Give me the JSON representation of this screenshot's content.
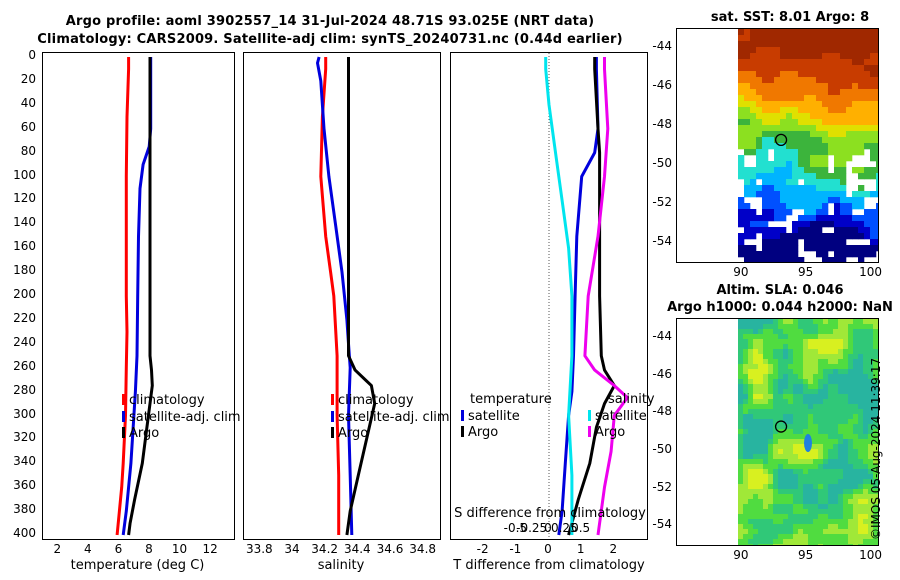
{
  "header": {
    "line1": "Argo profile: aoml 3902557_14 31-Jul-2024 48.71S 93.025E (NRT data)",
    "line2": "Climatology: CARS2009. Satellite-adj clim: synTS_20240731.nc (0.44d earlier)"
  },
  "colors": {
    "climatology": "#ff0000",
    "satellite": "#0000dd",
    "argo": "#000000",
    "sal_sat": "#00e5ee",
    "sal_argo": "#ee00ee"
  },
  "chart_data": [
    {
      "type": "line",
      "id": "temperature",
      "xlabel": "temperature (deg C)",
      "xlim": [
        1,
        13.5
      ],
      "ylim": [
        0,
        400
      ],
      "y_reversed": true,
      "xticks": [
        "2",
        "4",
        "6",
        "8",
        "10",
        "12"
      ],
      "yticks": [
        "0",
        "20",
        "40",
        "60",
        "80",
        "100",
        "120",
        "140",
        "160",
        "180",
        "200",
        "220",
        "240",
        "260",
        "280",
        "300",
        "320",
        "340",
        "360",
        "380",
        "400"
      ],
      "legend": [
        "climatology",
        "satellite-adj. clim",
        "Argo"
      ],
      "series": [
        {
          "name": "climatology",
          "depth": [
            0,
            10,
            50,
            100,
            150,
            200,
            230,
            260,
            300,
            340,
            360,
            380,
            400
          ],
          "values": [
            6.6,
            6.6,
            6.5,
            6.45,
            6.45,
            6.45,
            6.5,
            6.45,
            6.4,
            6.25,
            6.15,
            6.0,
            5.85
          ]
        },
        {
          "name": "satellite-adj. clim",
          "depth": [
            0,
            10,
            60,
            75,
            90,
            110,
            150,
            200,
            250,
            280,
            300,
            340,
            380,
            400
          ],
          "values": [
            8.05,
            8.05,
            8.05,
            7.95,
            7.55,
            7.35,
            7.25,
            7.2,
            7.15,
            7.05,
            6.95,
            6.75,
            6.45,
            6.25
          ]
        },
        {
          "name": "Argo",
          "depth": [
            0,
            10,
            60,
            80,
            100,
            150,
            200,
            250,
            262,
            275,
            290,
            310,
            340,
            370,
            390,
            400
          ],
          "values": [
            8.0,
            8.0,
            8.0,
            8.0,
            8.0,
            8.0,
            8.0,
            8.0,
            8.1,
            8.15,
            8.0,
            7.8,
            7.5,
            7.0,
            6.7,
            6.6
          ]
        }
      ]
    },
    {
      "type": "line",
      "id": "salinity",
      "xlabel": "salinity",
      "xlim": [
        33.7,
        34.9
      ],
      "ylim": [
        0,
        400
      ],
      "y_reversed": true,
      "xticks": [
        "33.8",
        "34",
        "34.2",
        "34.4",
        "34.6",
        "34.8"
      ],
      "legend": [
        "climatology",
        "satellite-adj. clim",
        "Argo"
      ],
      "series": [
        {
          "name": "climatology",
          "depth": [
            0,
            10,
            50,
            100,
            150,
            180,
            200,
            250,
            300,
            350,
            400
          ],
          "values": [
            34.2,
            34.2,
            34.18,
            34.17,
            34.2,
            34.23,
            34.25,
            34.27,
            34.27,
            34.28,
            34.28
          ]
        },
        {
          "name": "satellite-adj. clim",
          "depth": [
            0,
            5,
            20,
            60,
            100,
            140,
            180,
            220,
            240,
            260,
            300,
            350,
            400
          ],
          "values": [
            34.16,
            34.15,
            34.17,
            34.19,
            34.22,
            34.26,
            34.3,
            34.33,
            34.34,
            34.35,
            34.34,
            34.35,
            34.36
          ]
        },
        {
          "name": "Argo",
          "depth": [
            0,
            10,
            60,
            100,
            150,
            200,
            250,
            262,
            275,
            290,
            320,
            350,
            380,
            400
          ],
          "values": [
            34.34,
            34.34,
            34.34,
            34.34,
            34.34,
            34.34,
            34.34,
            34.38,
            34.48,
            34.5,
            34.45,
            34.4,
            34.35,
            34.33
          ]
        }
      ]
    },
    {
      "type": "line",
      "id": "difference",
      "xlabel": "T difference from climatology",
      "top_label": "S difference from climatology",
      "xlim": [
        -3,
        3
      ],
      "ylim": [
        0,
        400
      ],
      "y_reversed": true,
      "xticks": [
        "-2",
        "-1",
        "0",
        "1",
        "2"
      ],
      "top_ticks": [
        "-0.5",
        "-0.25",
        "0",
        "0.25",
        "0.5"
      ],
      "legend_titles": [
        "temperature",
        "salinity"
      ],
      "legend_left": [
        "satellite",
        "Argo"
      ],
      "legend_right": [
        "satellite",
        "Argo"
      ],
      "series": [
        {
          "name": "T satellite",
          "depth": [
            0,
            10,
            60,
            80,
            100,
            150,
            200,
            250,
            280,
            300,
            340,
            380,
            400
          ],
          "values": [
            1.45,
            1.45,
            1.5,
            1.4,
            1.0,
            0.85,
            0.8,
            0.75,
            0.7,
            0.6,
            0.5,
            0.4,
            0.3
          ]
        },
        {
          "name": "T Argo",
          "depth": [
            0,
            10,
            60,
            80,
            100,
            150,
            200,
            250,
            262,
            275,
            290,
            310,
            340,
            370,
            400
          ],
          "values": [
            1.4,
            1.4,
            1.5,
            1.55,
            1.55,
            1.55,
            1.55,
            1.6,
            1.7,
            2.0,
            1.7,
            1.45,
            1.25,
            0.9,
            0.6
          ]
        },
        {
          "name": "S satellite",
          "depth": [
            0,
            10,
            40,
            80,
            120,
            160,
            200,
            250,
            300,
            350,
            400
          ],
          "values": [
            -0.05,
            -0.05,
            0.0,
            0.1,
            0.2,
            0.3,
            0.35,
            0.35,
            0.3,
            0.35,
            0.35
          ]
        },
        {
          "name": "S Argo",
          "depth": [
            0,
            10,
            60,
            100,
            150,
            200,
            250,
            262,
            275,
            285,
            300,
            330,
            360,
            400
          ],
          "values": [
            0.85,
            0.85,
            0.9,
            0.85,
            0.75,
            0.6,
            0.55,
            0.7,
            1.0,
            1.2,
            1.0,
            0.95,
            0.85,
            0.75
          ]
        }
      ]
    },
    {
      "type": "heatmap",
      "id": "sst-map",
      "title": "sat. SST: 8.01 Argo: 8",
      "xlim": [
        85,
        100.5
      ],
      "ylim": [
        -55,
        -43
      ],
      "xticks": [
        "90",
        "95",
        "100"
      ],
      "yticks": [
        "-44",
        "-46",
        "-48",
        "-50",
        "-52",
        "-54"
      ],
      "marker": {
        "lon": 93.025,
        "lat": -48.71
      }
    },
    {
      "type": "heatmap",
      "id": "sla-map",
      "title1": "Altim. SLA: 0.046",
      "title2": "Argo h1000: 0.044 h2000: NaN",
      "xlim": [
        85,
        100.5
      ],
      "ylim": [
        -55,
        -43
      ],
      "xticks": [
        "90",
        "95",
        "100"
      ],
      "yticks": [
        "-44",
        "-46",
        "-48",
        "-50",
        "-52",
        "-54"
      ],
      "marker": {
        "lon": 93.025,
        "lat": -48.71
      }
    }
  ],
  "footer": {
    "stamp": "©IMOS 05-Aug-2024 11:39:17"
  }
}
